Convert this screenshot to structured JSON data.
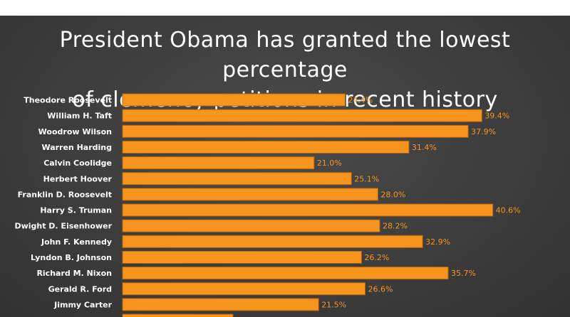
{
  "header": {
    "title_line1": "President Obama has granted the lowest percentage",
    "title_line2": "of clemency petitions in recent history"
  },
  "colors": {
    "bar": "#f7941d",
    "bar_edge": "#b8640a",
    "background": "#3d3d3d",
    "text": "#ffffff"
  },
  "chart_data": {
    "type": "bar",
    "orientation": "horizontal",
    "title": "President Obama has granted the lowest percentage of clemency petitions in recent history",
    "categories": [
      "Theodore Roosevelt",
      "William H. Taft",
      "Woodrow Wilson",
      "Warren Harding",
      "Calvin Coolidge",
      "Herbert Hoover",
      "Franklin D. Roosevelt",
      "Harry S. Truman",
      "Dwight D. Eisenhower",
      "John F. Kennedy",
      "Lyndon B. Johnson",
      "Richard M. Nixon",
      "Gerald R. Ford",
      "Jimmy Carter"
    ],
    "values": [
      24.4,
      39.4,
      37.9,
      31.4,
      21.0,
      25.1,
      28.0,
      40.6,
      28.2,
      32.9,
      26.2,
      35.7,
      26.6,
      21.5
    ],
    "value_labels": [
      "24.4%",
      "39.4%",
      "37.9%",
      "31.4%",
      "21.0%",
      "25.1%",
      "28.0%",
      "40.6%",
      "28.2%",
      "32.9%",
      "26.2%",
      "35.7%",
      "26.6%",
      "21.5%"
    ],
    "partial_bar_value": 12.1,
    "xlim": [
      0,
      50
    ],
    "grid": false,
    "legend": "none"
  }
}
